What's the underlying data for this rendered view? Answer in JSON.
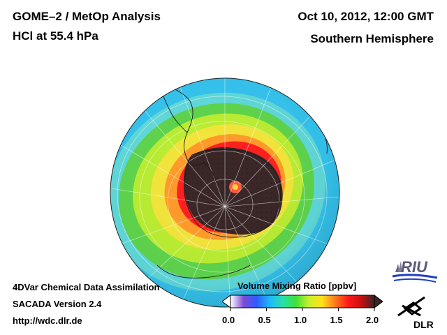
{
  "header": {
    "title_line1": "GOME–2 / MetOp Analysis",
    "title_line2": "HCl at 55.4 hPa",
    "date": "Oct 10, 2012, 12:00 GMT",
    "region": "Southern Hemisphere"
  },
  "footer": {
    "line1": "4DVar Chemical Data Assimilation",
    "line2": "SACADA Version 2.4",
    "line3": "http://wdc.dlr.de"
  },
  "colorbar": {
    "title": "Volume Mixing Ratio [ppbv]",
    "ticks": [
      "0.0",
      "0.5",
      "1.0",
      "1.5",
      "2.0"
    ],
    "tick_values": [
      0.0,
      0.5,
      1.0,
      1.5,
      2.0
    ],
    "range": [
      0.0,
      2.0
    ],
    "colors": [
      "#ffffff",
      "#7b4bd6",
      "#2f5cff",
      "#1fb8ff",
      "#28e0a8",
      "#3ee03a",
      "#c9f02a",
      "#ffe11a",
      "#ff7a1a",
      "#ff1a1a",
      "#c81010",
      "#3a2424"
    ]
  },
  "map": {
    "field_colors": {
      "outer": "#34c2ec",
      "collar_green": "#5ed34c",
      "collar_yellow": "#f1e43a",
      "orange": "#ff9a2a",
      "red_edge": "#ff1f1f",
      "vortex_core": "#3a2626"
    }
  },
  "logos": {
    "riu_text": "RIU",
    "dlr_text": "DLR"
  }
}
